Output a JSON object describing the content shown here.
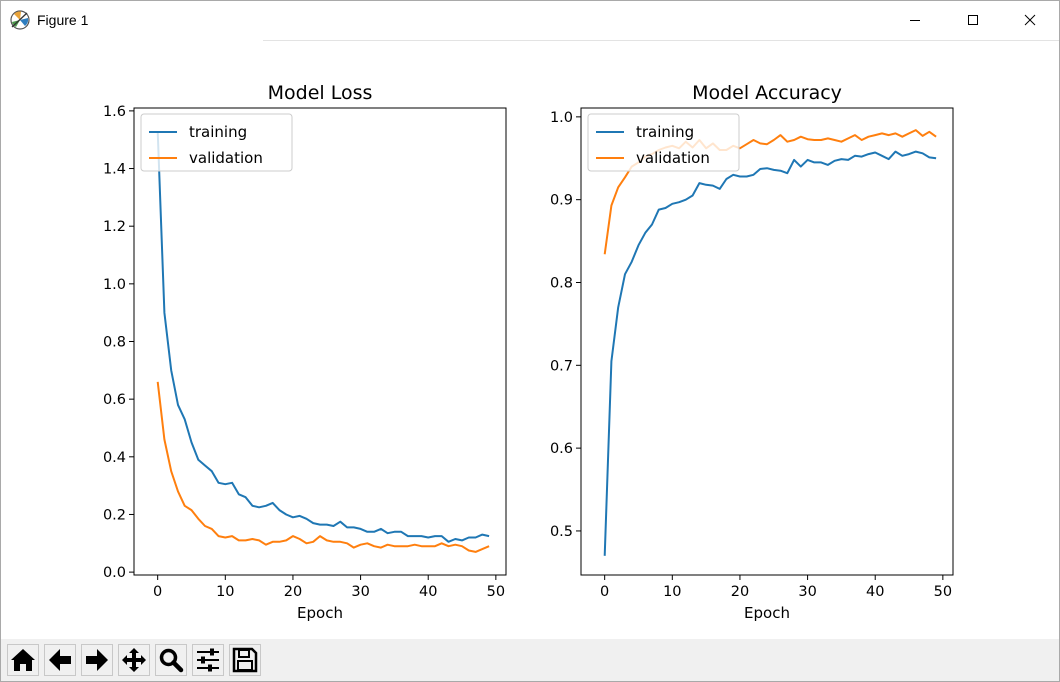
{
  "window": {
    "title": "Figure 1",
    "icons": {
      "app": "matplotlib-logo-icon",
      "minimize": "minimize-icon",
      "maximize": "maximize-icon",
      "close": "close-icon"
    }
  },
  "toolbar": {
    "buttons": [
      {
        "name": "home-button",
        "icon": "home-icon"
      },
      {
        "name": "back-button",
        "icon": "arrow-left-icon"
      },
      {
        "name": "forward-button",
        "icon": "arrow-right-icon"
      },
      {
        "name": "pan-button",
        "icon": "move-icon"
      },
      {
        "name": "zoom-button",
        "icon": "magnifier-icon"
      },
      {
        "name": "configure-subplots-button",
        "icon": "sliders-icon"
      },
      {
        "name": "save-button",
        "icon": "floppy-disk-icon"
      }
    ]
  },
  "colors": {
    "training": "#1f77b4",
    "validation": "#ff7f0e"
  },
  "chart_data": [
    {
      "type": "line",
      "title": "Model Loss",
      "xlabel": "Epoch",
      "ylabel": "",
      "xlim": [
        -3.5,
        51.5
      ],
      "ylim": [
        -0.01,
        1.61
      ],
      "xticks": [
        0,
        10,
        20,
        30,
        40,
        50
      ],
      "yticks": [
        0.0,
        0.2,
        0.4,
        0.6,
        0.8,
        1.0,
        1.2,
        1.4,
        1.6
      ],
      "ytick_labels": [
        "0.0",
        "0.2",
        "0.4",
        "0.6",
        "0.8",
        "1.0",
        "1.2",
        "1.4",
        "1.6"
      ],
      "legend": "top-left",
      "x": [
        0,
        1,
        2,
        3,
        4,
        5,
        6,
        7,
        8,
        9,
        10,
        11,
        12,
        13,
        14,
        15,
        16,
        17,
        18,
        19,
        20,
        21,
        22,
        23,
        24,
        25,
        26,
        27,
        28,
        29,
        30,
        31,
        32,
        33,
        34,
        35,
        36,
        37,
        38,
        39,
        40,
        41,
        42,
        43,
        44,
        45,
        46,
        47,
        48,
        49
      ],
      "series": [
        {
          "name": "training",
          "color": "#1f77b4",
          "values": [
            1.53,
            0.9,
            0.7,
            0.58,
            0.53,
            0.45,
            0.39,
            0.37,
            0.35,
            0.31,
            0.305,
            0.31,
            0.27,
            0.26,
            0.23,
            0.225,
            0.23,
            0.24,
            0.215,
            0.2,
            0.19,
            0.195,
            0.185,
            0.17,
            0.165,
            0.165,
            0.16,
            0.175,
            0.155,
            0.155,
            0.15,
            0.14,
            0.14,
            0.15,
            0.135,
            0.14,
            0.14,
            0.125,
            0.125,
            0.125,
            0.12,
            0.125,
            0.125,
            0.105,
            0.115,
            0.11,
            0.12,
            0.12,
            0.13,
            0.125
          ]
        },
        {
          "name": "validation",
          "color": "#ff7f0e",
          "values": [
            0.66,
            0.46,
            0.35,
            0.28,
            0.23,
            0.215,
            0.185,
            0.16,
            0.15,
            0.125,
            0.12,
            0.125,
            0.11,
            0.11,
            0.115,
            0.11,
            0.095,
            0.105,
            0.105,
            0.11,
            0.125,
            0.115,
            0.1,
            0.105,
            0.125,
            0.11,
            0.105,
            0.105,
            0.1,
            0.085,
            0.095,
            0.1,
            0.09,
            0.085,
            0.095,
            0.09,
            0.09,
            0.09,
            0.095,
            0.09,
            0.09,
            0.09,
            0.1,
            0.09,
            0.095,
            0.09,
            0.075,
            0.07,
            0.08,
            0.09
          ]
        }
      ]
    },
    {
      "type": "line",
      "title": "Model Accuracy",
      "xlabel": "Epoch",
      "ylabel": "",
      "xlim": [
        -3.5,
        51.5
      ],
      "ylim": [
        0.4468,
        1.0107
      ],
      "xticks": [
        0,
        10,
        20,
        30,
        40,
        50
      ],
      "yticks": [
        0.5,
        0.6,
        0.7,
        0.8,
        0.9,
        1.0
      ],
      "ytick_labels": [
        "0.5",
        "0.6",
        "0.7",
        "0.8",
        "0.9",
        "1.0"
      ],
      "legend": "top-left",
      "x": [
        0,
        1,
        2,
        3,
        4,
        5,
        6,
        7,
        8,
        9,
        10,
        11,
        12,
        13,
        14,
        15,
        16,
        17,
        18,
        19,
        20,
        21,
        22,
        23,
        24,
        25,
        26,
        27,
        28,
        29,
        30,
        31,
        32,
        33,
        34,
        35,
        36,
        37,
        38,
        39,
        40,
        41,
        42,
        43,
        44,
        45,
        46,
        47,
        48,
        49
      ],
      "series": [
        {
          "name": "training",
          "color": "#1f77b4",
          "values": [
            0.47,
            0.705,
            0.77,
            0.81,
            0.825,
            0.845,
            0.86,
            0.87,
            0.888,
            0.89,
            0.895,
            0.897,
            0.9,
            0.905,
            0.92,
            0.918,
            0.917,
            0.913,
            0.925,
            0.93,
            0.928,
            0.928,
            0.93,
            0.937,
            0.938,
            0.936,
            0.935,
            0.932,
            0.948,
            0.94,
            0.948,
            0.945,
            0.945,
            0.942,
            0.947,
            0.949,
            0.948,
            0.953,
            0.952,
            0.955,
            0.957,
            0.953,
            0.949,
            0.958,
            0.953,
            0.955,
            0.958,
            0.956,
            0.951,
            0.95
          ]
        },
        {
          "name": "validation",
          "color": "#ff7f0e",
          "values": [
            0.834,
            0.893,
            0.915,
            0.927,
            0.94,
            0.945,
            0.952,
            0.955,
            0.96,
            0.963,
            0.965,
            0.962,
            0.97,
            0.963,
            0.972,
            0.962,
            0.968,
            0.96,
            0.96,
            0.965,
            0.962,
            0.967,
            0.972,
            0.968,
            0.967,
            0.972,
            0.978,
            0.97,
            0.972,
            0.976,
            0.973,
            0.972,
            0.972,
            0.974,
            0.972,
            0.97,
            0.974,
            0.978,
            0.972,
            0.976,
            0.978,
            0.98,
            0.978,
            0.98,
            0.976,
            0.98,
            0.984,
            0.977,
            0.982,
            0.976
          ]
        }
      ]
    }
  ]
}
